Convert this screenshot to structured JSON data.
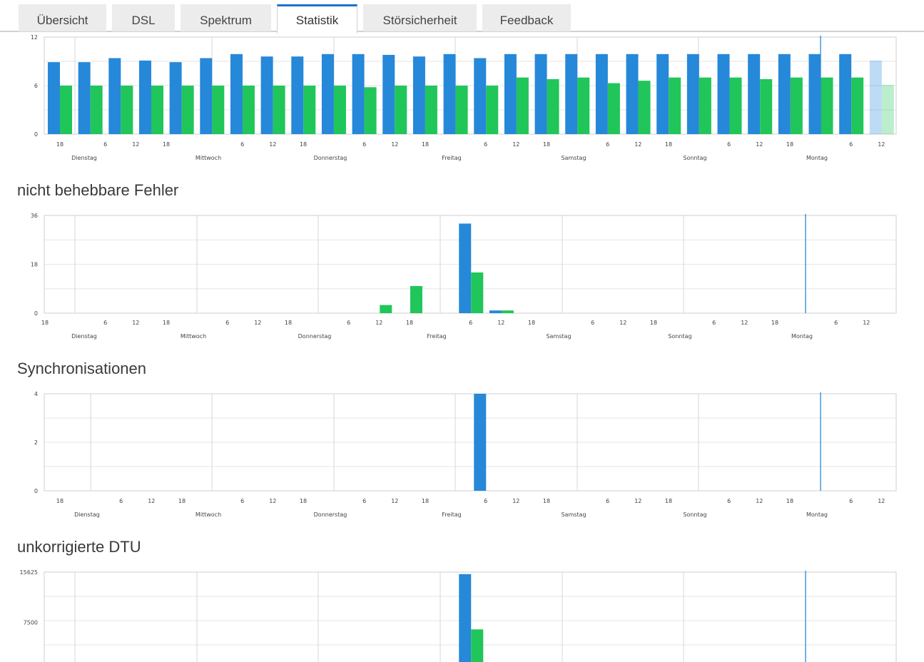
{
  "tabs": [
    {
      "label": "Übersicht",
      "active": false
    },
    {
      "label": "DSL",
      "active": false
    },
    {
      "label": "Spektrum",
      "active": false
    },
    {
      "label": "Statistik",
      "active": true
    },
    {
      "label": "Störsicherheit",
      "active": false
    },
    {
      "label": "Feedback",
      "active": false
    }
  ],
  "colors": {
    "downstream": "#2688d9",
    "upstream": "#20c659",
    "accent": "#1a73c9"
  },
  "titles": {
    "fehler": "nicht behebbare Fehler",
    "sync": "Synchronisationen",
    "dtu": "unkorrigierte DTU"
  },
  "chart_data": [
    {
      "type": "bar",
      "title": "",
      "yticks": [
        "0",
        "6",
        "12"
      ],
      "ylim": [
        0,
        12
      ],
      "day_labels": [
        "Dienstag",
        "Mittwoch",
        "Donnerstag",
        "Freitag",
        "Samstag",
        "Sonntag",
        "Montag"
      ],
      "hour_labels": [
        "18",
        "6",
        "12",
        "18",
        "6",
        "12",
        "18",
        "6",
        "12",
        "18",
        "6",
        "12",
        "18",
        "6",
        "12",
        "18",
        "6",
        "12",
        "18",
        "6",
        "12"
      ],
      "current_marker": "Montag",
      "series": [
        {
          "values": [
            8.9,
            8.9,
            9.4,
            9.1,
            8.9,
            9.4,
            9.9,
            9.6,
            9.6,
            9.9,
            9.9,
            9.8,
            9.6,
            9.9,
            9.4,
            9.9,
            9.9,
            9.9,
            9.9,
            9.9,
            9.9,
            9.9,
            9.9,
            9.9,
            9.9,
            9.9,
            9.9,
            9.1
          ]
        },
        {
          "values": [
            6.0,
            6.0,
            6.0,
            6.0,
            6.0,
            6.0,
            6.0,
            6.0,
            6.0,
            6.0,
            5.8,
            6.0,
            6.0,
            6.0,
            6.0,
            7.0,
            6.8,
            7.0,
            6.3,
            6.6,
            7.0,
            7.0,
            7.0,
            6.8,
            7.0,
            7.0,
            7.0,
            6.1
          ]
        }
      ]
    },
    {
      "type": "bar",
      "title": "nicht behebbare Fehler",
      "yticks": [
        "0",
        "18",
        "36"
      ],
      "ylim": [
        0,
        36
      ],
      "day_labels": [
        "Dienstag",
        "Mittwoch",
        "Donnerstag",
        "Freitag",
        "Samstag",
        "Sonntag",
        "Montag"
      ],
      "hour_labels": [
        "18",
        "6",
        "12",
        "18",
        "6",
        "12",
        "18",
        "6",
        "12",
        "18",
        "6",
        "12",
        "18",
        "6",
        "12",
        "18",
        "6",
        "12",
        "18",
        "6",
        "12"
      ],
      "current_marker": "Montag",
      "series": [
        {
          "values": [
            0,
            0,
            0,
            0,
            0,
            0,
            0,
            0,
            0,
            0,
            0,
            0,
            0,
            0,
            33,
            1,
            0,
            0,
            0,
            0,
            0,
            0,
            0,
            0,
            0,
            0,
            0,
            0
          ]
        },
        {
          "values": [
            0,
            0,
            0,
            0,
            0,
            0,
            0,
            0,
            0,
            0,
            0,
            3,
            10,
            0,
            15,
            1,
            0,
            0,
            0,
            0,
            0,
            0,
            0,
            0,
            0,
            0,
            0,
            0
          ]
        }
      ]
    },
    {
      "type": "bar",
      "title": "Synchronisationen",
      "yticks": [
        "0",
        "2",
        "4"
      ],
      "ylim": [
        0,
        4
      ],
      "day_labels": [
        "Dienstag",
        "Mittwoch",
        "Donnerstag",
        "Freitag",
        "Samstag",
        "Sonntag",
        "Montag"
      ],
      "hour_labels": [
        "18",
        "6",
        "12",
        "18",
        "6",
        "12",
        "18",
        "6",
        "12",
        "18",
        "6",
        "12",
        "18",
        "6",
        "12",
        "18",
        "6",
        "12",
        "18",
        "6",
        "12"
      ],
      "current_marker": "Montag",
      "series": [
        {
          "values": [
            0,
            0,
            0,
            0,
            0,
            0,
            0,
            0,
            0,
            0,
            0,
            0,
            0,
            0,
            4,
            0,
            0,
            0,
            0,
            0,
            0,
            0,
            0,
            0,
            0,
            0,
            0,
            0
          ]
        },
        {
          "values": [
            0,
            0,
            0,
            0,
            0,
            0,
            0,
            0,
            0,
            0,
            0,
            0,
            0,
            0,
            0,
            0,
            0,
            0,
            0,
            0,
            0,
            0,
            0,
            0,
            0,
            0,
            0,
            0
          ]
        }
      ]
    },
    {
      "type": "bar",
      "title": "unkorrigierte DTU",
      "yticks": [
        "7500",
        "15625"
      ],
      "ylim": [
        0,
        15625
      ],
      "day_labels": [],
      "hour_labels": [],
      "current_marker": "Montag",
      "series": [
        {
          "values": [
            0,
            0,
            0,
            0,
            0,
            0,
            0,
            0,
            0,
            0,
            0,
            0,
            0,
            0,
            15300,
            0,
            0,
            0,
            0,
            0,
            0,
            0,
            0,
            0,
            0,
            0,
            0,
            0
          ]
        },
        {
          "values": [
            0,
            0,
            0,
            0,
            0,
            0,
            0,
            0,
            0,
            0,
            0,
            0,
            0,
            0,
            6400,
            0,
            0,
            0,
            0,
            0,
            0,
            0,
            0,
            0,
            0,
            0,
            0,
            0
          ]
        }
      ]
    }
  ]
}
